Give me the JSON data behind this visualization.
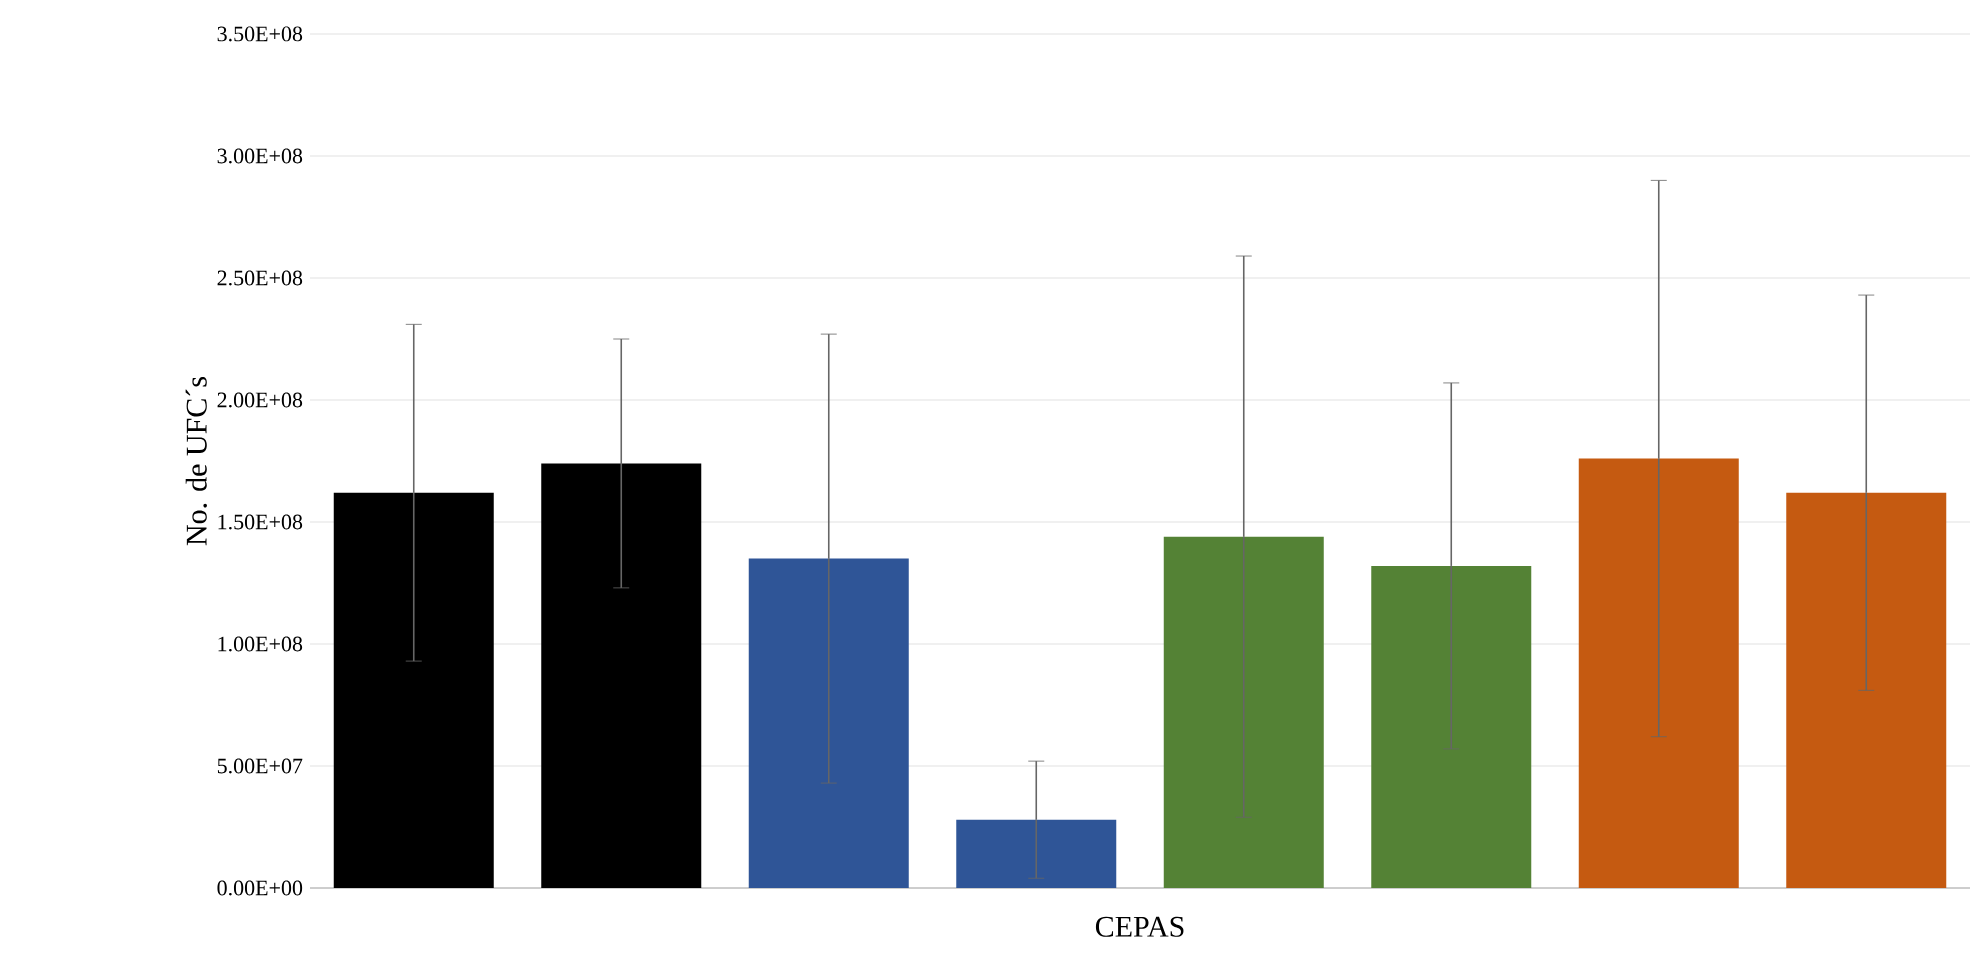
{
  "chart_data": {
    "type": "bar",
    "xlabel": "CEPAS",
    "ylabel": "No. de UFC´s",
    "categories": [
      null,
      null,
      null,
      null,
      null,
      null,
      null,
      null
    ],
    "values": [
      162000000.0,
      174000000.0,
      135000000.0,
      28000000.0,
      144000000.0,
      132000000.0,
      176000000.0,
      162000000.0
    ],
    "errors": [
      69000000.0,
      51000000.0,
      92000000.0,
      24000000.0,
      115000000.0,
      75000000.0,
      114000000.0,
      81000000.0
    ],
    "colors": [
      "#000000",
      "#000000",
      "#2f5597",
      "#2f5597",
      "#548235",
      "#548235",
      "#c55a11",
      "#c55a11"
    ],
    "ylim": [
      0,
      350000000.0
    ],
    "yticks": [
      {
        "value": 0,
        "label": "0.00E+00"
      },
      {
        "value": 50000000.0,
        "label": "5.00E+07"
      },
      {
        "value": 100000000.0,
        "label": "1.00E+08"
      },
      {
        "value": 150000000.0,
        "label": "1.50E+08"
      },
      {
        "value": 200000000.0,
        "label": "2.00E+08"
      },
      {
        "value": 250000000.0,
        "label": "2.50E+08"
      },
      {
        "value": 300000000.0,
        "label": "3.00E+08"
      },
      {
        "value": 350000000.0,
        "label": "3.50E+08"
      }
    ],
    "grid": "y"
  }
}
